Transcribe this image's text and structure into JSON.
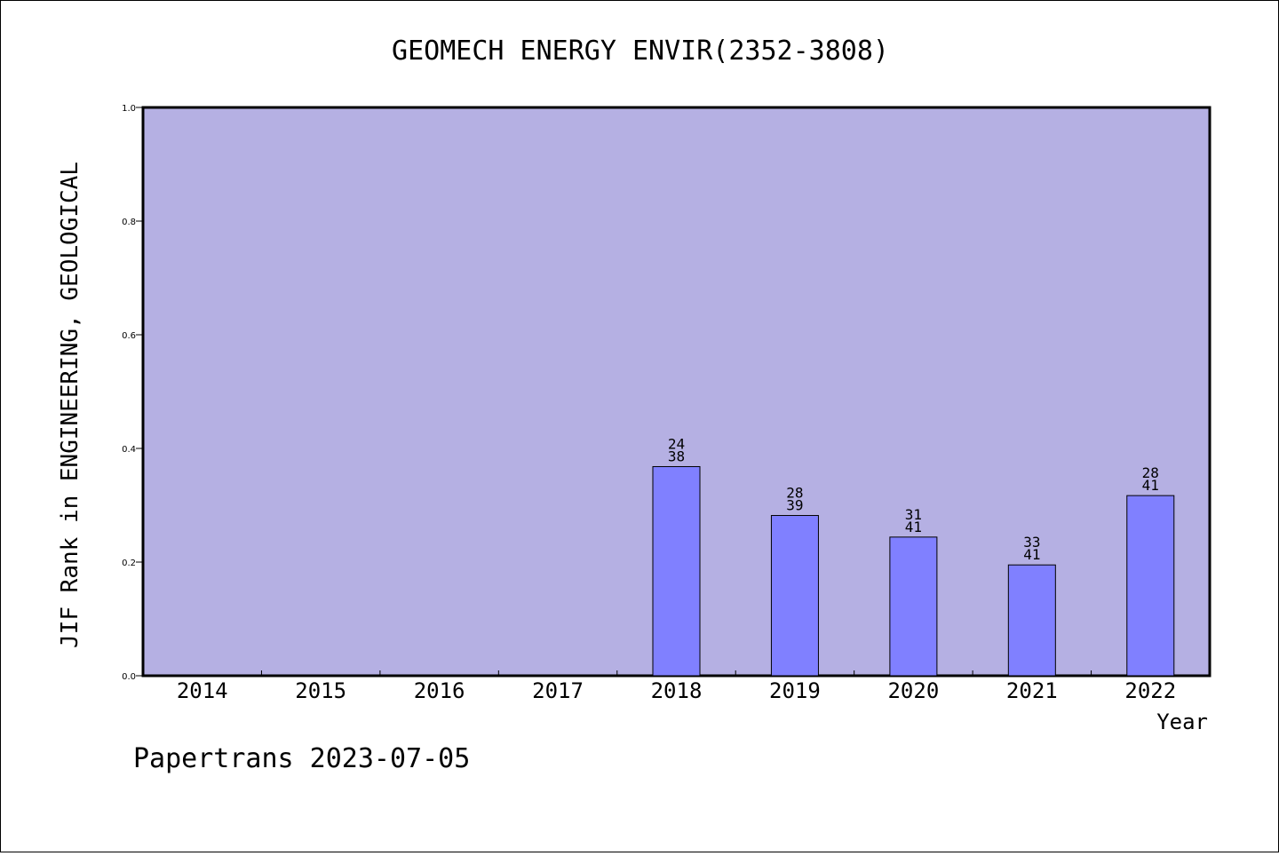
{
  "colors": {
    "plot_background": "#b5b0e3",
    "bar_fill": "#8080ff",
    "axis": "#000000",
    "page_background": "#ffffff"
  },
  "footer": "Papertrans 2023-07-05",
  "chart_data": {
    "type": "bar",
    "title": "GEOMECH ENERGY ENVIR(2352-3808)",
    "xlabel": "Year",
    "ylabel": "JIF Rank in ENGINEERING, GEOLOGICAL",
    "categories": [
      "2014",
      "2015",
      "2016",
      "2017",
      "2018",
      "2019",
      "2020",
      "2021",
      "2022"
    ],
    "values": [
      null,
      null,
      null,
      null,
      0.368,
      0.282,
      0.244,
      0.195,
      0.317
    ],
    "ranks": [
      null,
      null,
      null,
      null,
      "24",
      "28",
      "31",
      "33",
      "28"
    ],
    "totals": [
      null,
      null,
      null,
      null,
      "38",
      "39",
      "41",
      "41",
      "41"
    ],
    "ylim": [
      0,
      1.0
    ],
    "yticks": [
      "0.0",
      "0.2",
      "0.4",
      "0.6",
      "0.8",
      "1.0"
    ],
    "grid": false,
    "legend": "none"
  }
}
